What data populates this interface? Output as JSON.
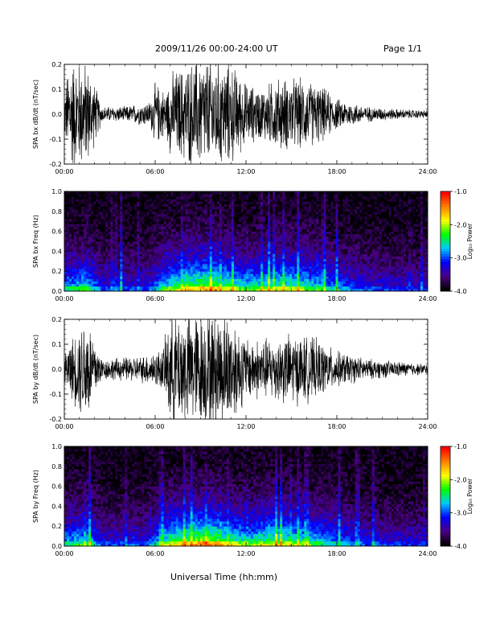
{
  "header": {
    "title": "2009/11/26  00:00-24:00 UT",
    "page": "Page 1/1"
  },
  "footer": {
    "xlabel": "Universal Time (hh:mm)"
  },
  "colorbar": {
    "title": "Log₁₀ Power",
    "ticks": [
      "-1.0",
      "-2.0",
      "-3.0",
      "-4.0"
    ],
    "tick_values": [
      -1.0,
      -2.0,
      -3.0,
      -4.0
    ],
    "range": [
      -4.0,
      -1.0
    ],
    "colormap": [
      "#000000",
      "#4b0082",
      "#0000ff",
      "#00c8ff",
      "#00ff00",
      "#ffff00",
      "#ff8000",
      "#ff0000"
    ]
  },
  "chart_data": [
    {
      "type": "line",
      "title": "",
      "ylabel": "SPA bx dB/dt (nT/sec)",
      "xlabel": "",
      "xlim": [
        "00:00",
        "24:00"
      ],
      "x_ticks": [
        "00:00",
        "06:00",
        "12:00",
        "18:00",
        "24:00"
      ],
      "ylim": [
        -0.2,
        0.2
      ],
      "y_ticks": [
        "-0.2",
        "-0.1",
        "0.0",
        "0.1",
        "0.2"
      ],
      "y_tick_values": [
        -0.2,
        -0.1,
        0.0,
        0.1,
        0.2
      ],
      "grid": false,
      "series": [
        {
          "color": "#000000",
          "amplitude_envelope": [
            {
              "time": "00:00",
              "amp": 0.08
            },
            {
              "time": "00:20",
              "amp": 0.22
            },
            {
              "time": "01:30",
              "amp": 0.2
            },
            {
              "time": "02:00",
              "amp": 0.12
            },
            {
              "time": "02:30",
              "amp": 0.03
            },
            {
              "time": "04:00",
              "amp": 0.03
            },
            {
              "time": "05:40",
              "amp": 0.05
            },
            {
              "time": "06:00",
              "amp": 0.12
            },
            {
              "time": "06:45",
              "amp": 0.09
            },
            {
              "time": "07:00",
              "amp": 0.16
            },
            {
              "time": "09:00",
              "amp": 0.22
            },
            {
              "time": "11:00",
              "amp": 0.2
            },
            {
              "time": "12:00",
              "amp": 0.12
            },
            {
              "time": "13:00",
              "amp": 0.1
            },
            {
              "time": "14:00",
              "amp": 0.14
            },
            {
              "time": "15:30",
              "amp": 0.14
            },
            {
              "time": "17:00",
              "amp": 0.11
            },
            {
              "time": "18:00",
              "amp": 0.06
            },
            {
              "time": "20:00",
              "amp": 0.03
            },
            {
              "time": "22:00",
              "amp": 0.02
            },
            {
              "time": "24:00",
              "amp": 0.015
            }
          ]
        }
      ]
    },
    {
      "type": "heatmap",
      "title": "",
      "ylabel": "SPA bx Freq (Hz)",
      "xlabel": "",
      "xlim": [
        "00:00",
        "24:00"
      ],
      "x_ticks": [
        "00:00",
        "06:00",
        "12:00",
        "18:00",
        "24:00"
      ],
      "ylim": [
        0.0,
        1.0
      ],
      "y_ticks": [
        "0.0",
        "0.2",
        "0.4",
        "0.6",
        "0.8",
        "1.0"
      ],
      "y_tick_values": [
        0.0,
        0.2,
        0.4,
        0.6,
        0.8,
        1.0
      ],
      "colorbar": "Log₁₀ Power",
      "activity_envelope": [
        {
          "time": "00:00",
          "level": 0.45
        },
        {
          "time": "01:30",
          "level": 0.55
        },
        {
          "time": "02:30",
          "level": 0.3
        },
        {
          "time": "05:30",
          "level": 0.3
        },
        {
          "time": "07:00",
          "level": 0.6
        },
        {
          "time": "09:30",
          "level": 0.75
        },
        {
          "time": "12:00",
          "level": 0.55
        },
        {
          "time": "14:00",
          "level": 0.62
        },
        {
          "time": "15:30",
          "level": 0.6
        },
        {
          "time": "17:30",
          "level": 0.45
        },
        {
          "time": "20:00",
          "level": 0.3
        },
        {
          "time": "24:00",
          "level": 0.25
        }
      ]
    },
    {
      "type": "line",
      "title": "",
      "ylabel": "SPA by dB/dt (nT/sec)",
      "xlabel": "",
      "xlim": [
        "00:00",
        "24:00"
      ],
      "x_ticks": [
        "00:00",
        "06:00",
        "12:00",
        "18:00",
        "24:00"
      ],
      "ylim": [
        -0.2,
        0.2
      ],
      "y_ticks": [
        "-0.2",
        "-0.1",
        "0.0",
        "0.1",
        "0.2"
      ],
      "y_tick_values": [
        -0.2,
        -0.1,
        0.0,
        0.1,
        0.2
      ],
      "grid": false,
      "series": [
        {
          "color": "#000000",
          "amplitude_envelope": [
            {
              "time": "00:00",
              "amp": 0.06
            },
            {
              "time": "00:30",
              "amp": 0.12
            },
            {
              "time": "01:30",
              "amp": 0.22
            },
            {
              "time": "02:00",
              "amp": 0.12
            },
            {
              "time": "02:30",
              "amp": 0.04
            },
            {
              "time": "05:00",
              "amp": 0.05
            },
            {
              "time": "06:30",
              "amp": 0.08
            },
            {
              "time": "07:00",
              "amp": 0.22
            },
            {
              "time": "11:00",
              "amp": 0.22
            },
            {
              "time": "12:00",
              "amp": 0.12
            },
            {
              "time": "13:30",
              "amp": 0.12
            },
            {
              "time": "15:00",
              "amp": 0.14
            },
            {
              "time": "16:30",
              "amp": 0.12
            },
            {
              "time": "18:00",
              "amp": 0.07
            },
            {
              "time": "20:00",
              "amp": 0.04
            },
            {
              "time": "24:00",
              "amp": 0.02
            }
          ]
        }
      ]
    },
    {
      "type": "heatmap",
      "title": "",
      "ylabel": "SPA by Freq (Hz)",
      "xlabel": "",
      "xlim": [
        "00:00",
        "24:00"
      ],
      "x_ticks": [
        "00:00",
        "06:00",
        "12:00",
        "18:00",
        "24:00"
      ],
      "ylim": [
        0.0,
        1.0
      ],
      "y_ticks": [
        "0.0",
        "0.2",
        "0.4",
        "0.6",
        "0.8",
        "1.0"
      ],
      "y_tick_values": [
        0.0,
        0.2,
        0.4,
        0.6,
        0.8,
        1.0
      ],
      "colorbar": "Log₁₀ Power",
      "activity_envelope": [
        {
          "time": "00:00",
          "level": 0.45
        },
        {
          "time": "01:30",
          "level": 0.55
        },
        {
          "time": "02:30",
          "level": 0.3
        },
        {
          "time": "05:30",
          "level": 0.3
        },
        {
          "time": "07:00",
          "level": 0.65
        },
        {
          "time": "09:30",
          "level": 0.8
        },
        {
          "time": "12:00",
          "level": 0.55
        },
        {
          "time": "14:00",
          "level": 0.65
        },
        {
          "time": "15:30",
          "level": 0.6
        },
        {
          "time": "17:30",
          "level": 0.45
        },
        {
          "time": "20:00",
          "level": 0.3
        },
        {
          "time": "24:00",
          "level": 0.25
        }
      ]
    }
  ]
}
